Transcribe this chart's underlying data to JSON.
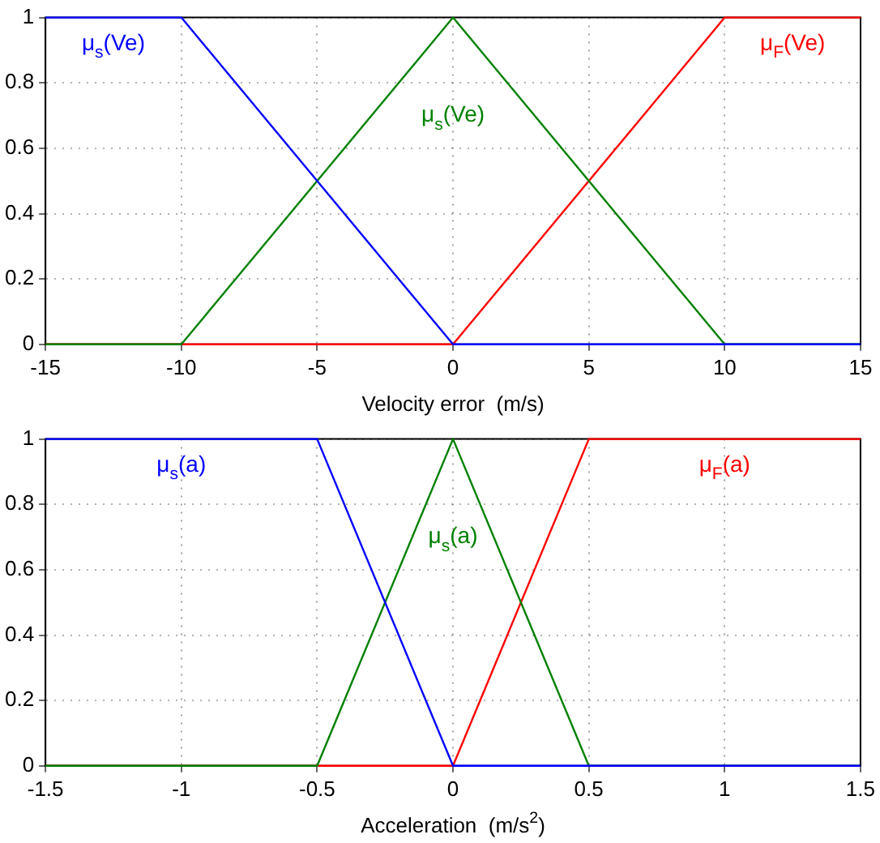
{
  "chart_data": [
    {
      "type": "line",
      "xlabel": "Velocity error  (m/s)",
      "xlim": [
        -15,
        15
      ],
      "xticks": [
        -15,
        -10,
        -5,
        0,
        5,
        10,
        15
      ],
      "ylim": [
        0,
        1
      ],
      "yticks": [
        0,
        0.2,
        0.4,
        0.6,
        0.8,
        1
      ],
      "grid": true,
      "legend": false,
      "marker": "none",
      "line_style": "solid",
      "series": [
        {
          "name": "μ$_{s}$(Ve)",
          "color": "#0000ff",
          "x": [
            -15,
            -10,
            0,
            15
          ],
          "values": [
            1,
            1,
            0,
            0
          ]
        },
        {
          "name": "μ$_{s}$(Ve)",
          "color": "#008000",
          "x": [
            -15,
            -10,
            0,
            10,
            15
          ],
          "values": [
            0,
            0,
            1,
            0,
            0
          ]
        },
        {
          "name": "μ$_{F}$(Ve)",
          "color": "#ff0000",
          "x": [
            -15,
            0,
            10,
            15
          ],
          "values": [
            0,
            0,
            1,
            1
          ]
        }
      ]
    },
    {
      "type": "line",
      "xlabel": "Acceleration  (m/s$^{2}$)",
      "xlim": [
        -1.5,
        1.5
      ],
      "xticks": [
        -1.5,
        -1,
        -0.5,
        0,
        0.5,
        1,
        1.5
      ],
      "ylim": [
        0,
        1
      ],
      "yticks": [
        0,
        0.2,
        0.4,
        0.6,
        0.8,
        1
      ],
      "grid": true,
      "legend": false,
      "marker": "none",
      "line_style": "solid",
      "series": [
        {
          "name": "μ$_{s}$(a)",
          "color": "#0000ff",
          "x": [
            -1.5,
            -0.5,
            0,
            1.5
          ],
          "values": [
            1,
            1,
            0,
            0
          ]
        },
        {
          "name": "μ$_{s}$(a)",
          "color": "#008000",
          "x": [
            -1.5,
            -0.5,
            0,
            0.5,
            1.5
          ],
          "values": [
            0,
            0,
            1,
            0,
            0
          ]
        },
        {
          "name": "μ$_{F}$(a)",
          "color": "#ff0000",
          "x": [
            -1.5,
            0,
            0.5,
            1.5
          ],
          "values": [
            0,
            0,
            1,
            1
          ]
        }
      ]
    }
  ]
}
